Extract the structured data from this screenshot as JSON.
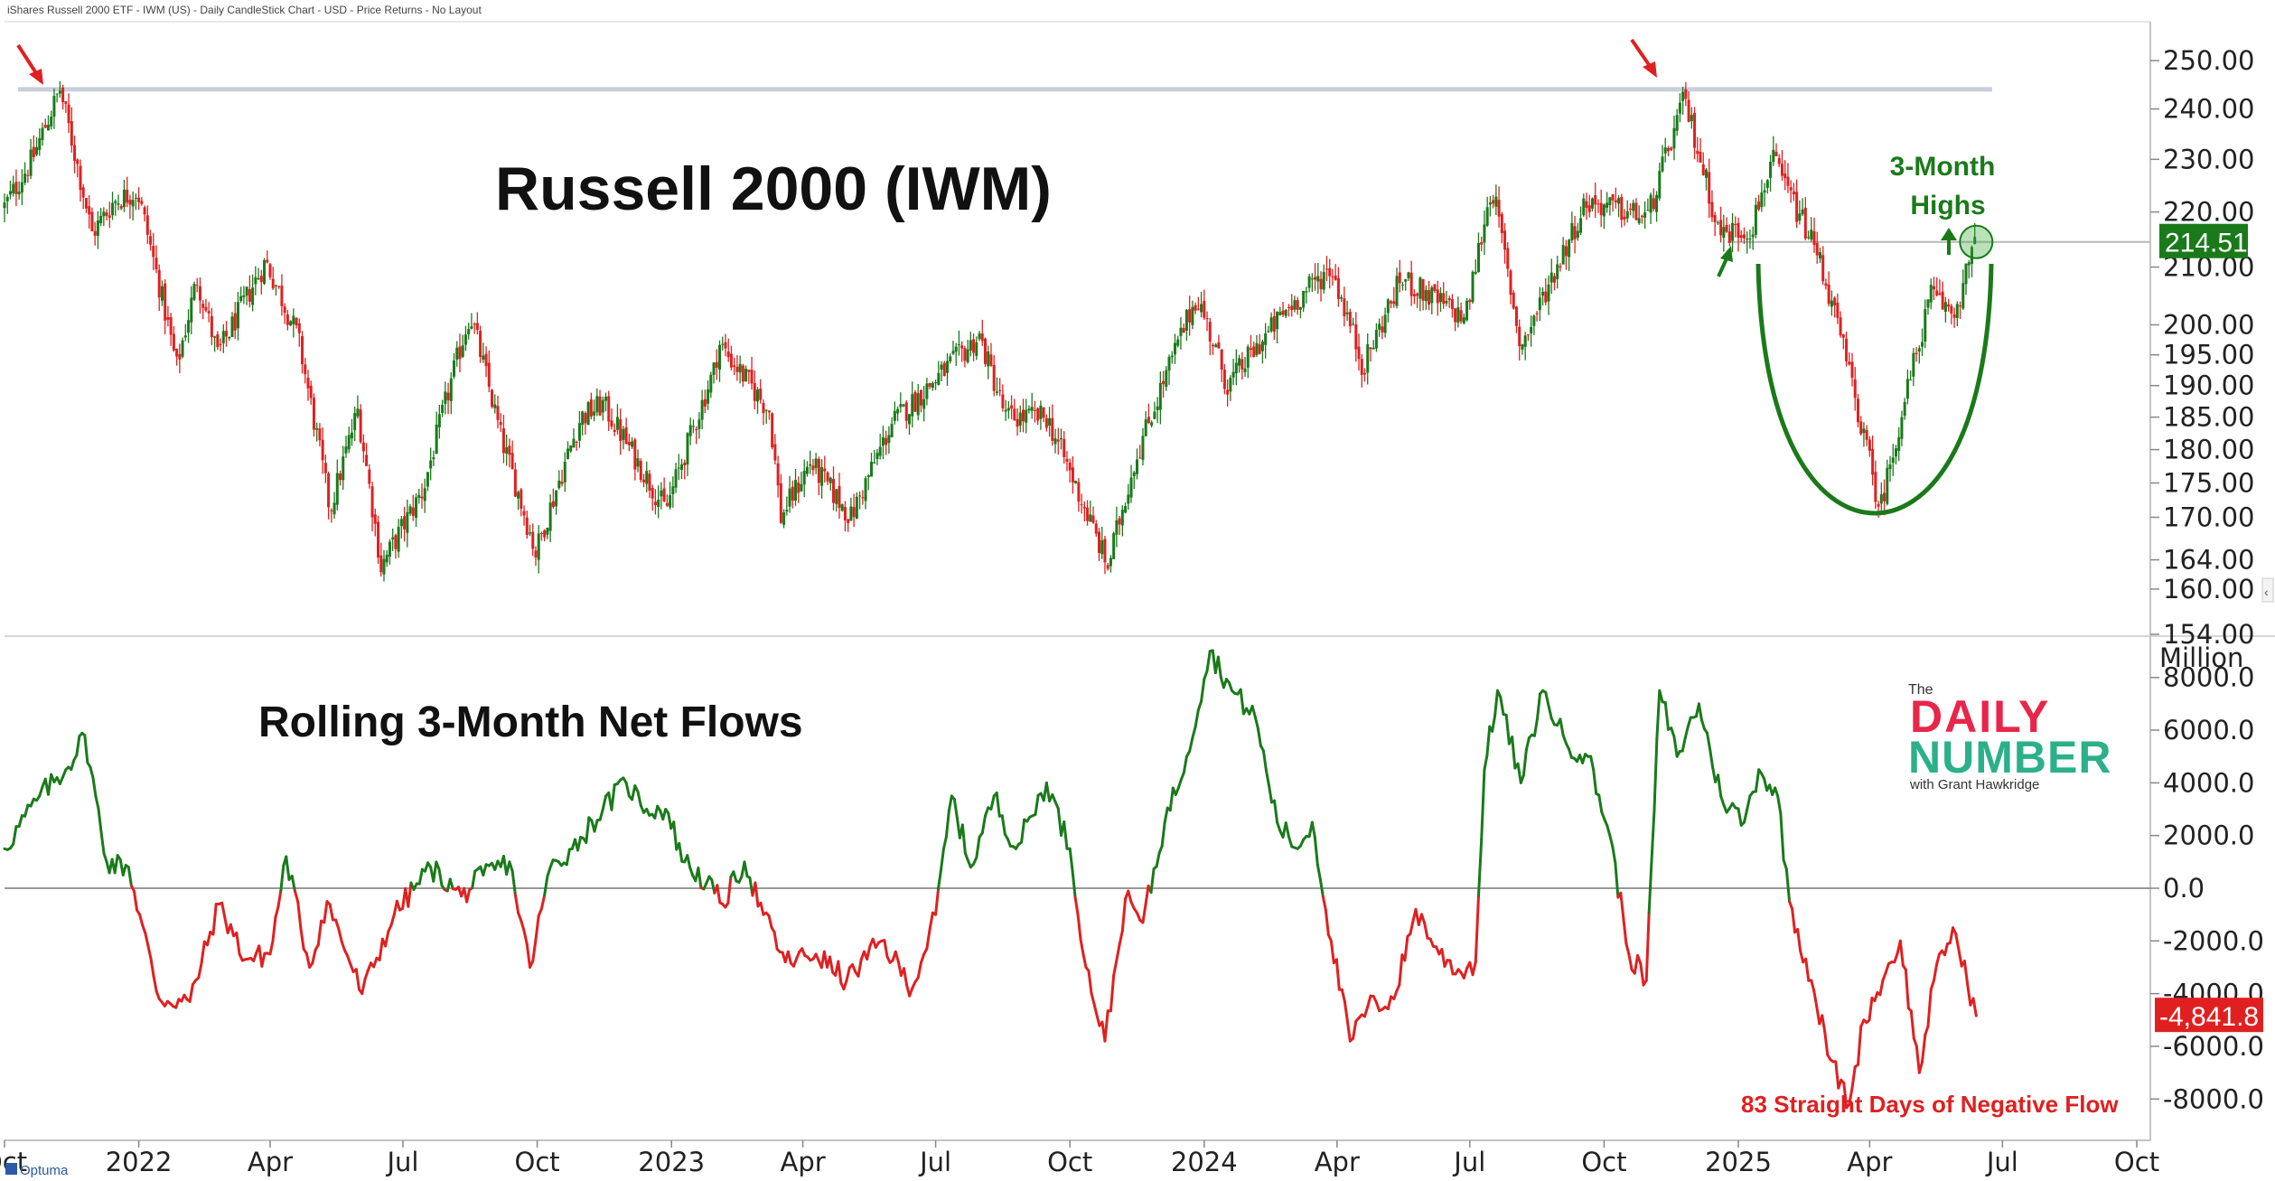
{
  "header": {
    "title": "iShares Russell 2000 ETF - IWM (US) - Daily CandleStick Chart - USD - Price Returns - No Layout"
  },
  "footer": {
    "brand": "Optuma"
  },
  "annotations": {
    "top_title": "Russell 2000 (IWM)",
    "bottom_title": "Rolling 3-Month Net Flows",
    "three_month_line1": "3-Month",
    "three_month_line2": "Highs",
    "negative_flow": "83 Straight Days of Negative Flow"
  },
  "logo": {
    "the": "The",
    "daily": "DAILY",
    "number": "NUMBER",
    "byline": "with Grant Hawkridge"
  },
  "colors": {
    "up": "#1a7a1a",
    "down": "#e02020",
    "annotation_green": "#1a7a1a",
    "annotation_red": "#e02020",
    "logo_red": "#e8254a",
    "logo_green": "#2bb08a"
  },
  "chart_data": [
    {
      "type": "candlestick",
      "title": "Russell 2000 (IWM)",
      "y_scale": "log",
      "ylim": [
        154,
        256
      ],
      "y_ticks": [
        "250.00",
        "240.00",
        "230.00",
        "220.00",
        "210.00",
        "200.00",
        "195.00",
        "190.00",
        "185.00",
        "180.00",
        "175.00",
        "170.00",
        "164.00",
        "160.00",
        "154.00"
      ],
      "last_value": "214.51",
      "resistance_level": 244,
      "three_month_high_level": 214.5,
      "x_ticks": [
        "Oct",
        "2022",
        "Apr",
        "Jul",
        "Oct",
        "2023",
        "Apr",
        "Jul",
        "Oct",
        "2024",
        "Apr",
        "Jul",
        "Oct",
        "2025",
        "Apr",
        "Jul",
        "Oct"
      ],
      "x_tick_dates": [
        "2021-10-01",
        "2022-01-01",
        "2022-04-01",
        "2022-07-01",
        "2022-10-01",
        "2023-01-01",
        "2023-04-01",
        "2023-07-01",
        "2023-10-01",
        "2024-01-01",
        "2024-04-01",
        "2024-07-01",
        "2024-10-01",
        "2025-01-01",
        "2025-04-01",
        "2025-07-01",
        "2025-10-01"
      ],
      "price_path": [
        [
          "2021-10-01",
          221
        ],
        [
          "2021-10-20",
          230
        ],
        [
          "2021-11-08",
          244
        ],
        [
          "2021-11-30",
          216
        ],
        [
          "2021-12-15",
          222
        ],
        [
          "2021-12-31",
          224
        ],
        [
          "2022-01-27",
          193
        ],
        [
          "2022-02-10",
          208
        ],
        [
          "2022-02-24",
          195
        ],
        [
          "2022-03-29",
          211
        ],
        [
          "2022-04-20",
          198
        ],
        [
          "2022-05-12",
          171
        ],
        [
          "2022-05-31",
          186
        ],
        [
          "2022-06-16",
          163
        ],
        [
          "2022-07-15",
          174
        ],
        [
          "2022-08-16",
          202
        ],
        [
          "2022-09-06",
          182
        ],
        [
          "2022-09-30",
          165
        ],
        [
          "2022-10-31",
          185
        ],
        [
          "2022-11-15",
          187
        ],
        [
          "2022-12-28",
          171
        ],
        [
          "2023-01-31",
          193
        ],
        [
          "2023-02-02",
          197
        ],
        [
          "2023-03-09",
          186
        ],
        [
          "2023-03-17",
          170
        ],
        [
          "2023-04-06",
          178
        ],
        [
          "2023-05-04",
          170
        ],
        [
          "2023-06-01",
          184
        ],
        [
          "2023-07-31",
          198
        ],
        [
          "2023-08-18",
          185
        ],
        [
          "2023-09-15",
          185
        ],
        [
          "2023-10-27",
          163
        ],
        [
          "2023-11-14",
          178
        ],
        [
          "2023-12-27",
          205
        ],
        [
          "2024-01-17",
          190
        ],
        [
          "2024-02-28",
          203
        ],
        [
          "2024-03-28",
          210
        ],
        [
          "2024-04-19",
          193
        ],
        [
          "2024-05-15",
          208
        ],
        [
          "2024-06-28",
          201
        ],
        [
          "2024-07-16",
          225
        ],
        [
          "2024-08-05",
          196
        ],
        [
          "2024-09-19",
          222
        ],
        [
          "2024-10-31",
          219
        ],
        [
          "2024-11-25",
          242
        ],
        [
          "2024-12-19",
          216
        ],
        [
          "2025-01-10",
          217
        ],
        [
          "2025-01-24",
          230
        ],
        [
          "2025-02-25",
          212
        ],
        [
          "2025-03-13",
          197
        ],
        [
          "2025-04-08",
          171
        ],
        [
          "2025-05-13",
          205
        ],
        [
          "2025-05-29",
          202
        ],
        [
          "2025-06-13",
          214.5
        ]
      ]
    },
    {
      "type": "line",
      "title": "Rolling 3-Month Net Flows",
      "ylabel": "Million",
      "ylim": [
        -9500,
        9500
      ],
      "y_ticks": [
        "8000.0",
        "6000.0",
        "4000.0",
        "2000.0",
        "0.0",
        "-2000.0",
        "-4000.0",
        "-6000.0",
        "-8000.0"
      ],
      "last_value": "-4,841.8",
      "positive_color": "#1a7a1a",
      "negative_color": "#e02020",
      "series": [
        {
          "points": [
            [
              "2021-10-01",
              1500
            ],
            [
              "2021-10-25",
              3500
            ],
            [
              "2021-11-12",
              4500
            ],
            [
              "2021-11-25",
              5800
            ],
            [
              "2021-12-10",
              1000
            ],
            [
              "2021-12-25",
              800
            ],
            [
              "2022-01-15",
              -4200
            ],
            [
              "2022-02-05",
              -4300
            ],
            [
              "2022-02-25",
              -600
            ],
            [
              "2022-03-15",
              -2700
            ],
            [
              "2022-04-01",
              -2500
            ],
            [
              "2022-04-12",
              1200
            ],
            [
              "2022-04-28",
              -3000
            ],
            [
              "2022-05-10",
              -500
            ],
            [
              "2022-06-03",
              -4000
            ],
            [
              "2022-06-25",
              -1000
            ],
            [
              "2022-07-20",
              800
            ],
            [
              "2022-08-10",
              -300
            ],
            [
              "2022-08-25",
              500
            ],
            [
              "2022-09-12",
              1000
            ],
            [
              "2022-09-26",
              -3000
            ],
            [
              "2022-10-10",
              800
            ],
            [
              "2022-10-25",
              1500
            ],
            [
              "2022-11-15",
              3000
            ],
            [
              "2022-12-01",
              4000
            ],
            [
              "2022-12-15",
              3000
            ],
            [
              "2022-12-28",
              3000
            ],
            [
              "2023-01-10",
              1000
            ],
            [
              "2023-01-25",
              200
            ],
            [
              "2023-02-05",
              -600
            ],
            [
              "2023-02-20",
              1000
            ],
            [
              "2023-03-05",
              -1000
            ],
            [
              "2023-03-20",
              -2800
            ],
            [
              "2023-04-10",
              -2500
            ],
            [
              "2023-05-01",
              -3500
            ],
            [
              "2023-05-25",
              -2000
            ],
            [
              "2023-06-15",
              -3800
            ],
            [
              "2023-07-01",
              -1000
            ],
            [
              "2023-07-12",
              3500
            ],
            [
              "2023-07-25",
              800
            ],
            [
              "2023-08-10",
              3500
            ],
            [
              "2023-08-25",
              1500
            ],
            [
              "2023-09-15",
              4000
            ],
            [
              "2023-10-01",
              1500
            ],
            [
              "2023-10-12",
              -3000
            ],
            [
              "2023-10-25",
              -5800
            ],
            [
              "2023-11-08",
              -400
            ],
            [
              "2023-11-20",
              -1300
            ],
            [
              "2023-12-05",
              2500
            ],
            [
              "2023-12-20",
              5000
            ],
            [
              "2024-01-05",
              9000
            ],
            [
              "2024-01-20",
              7500
            ],
            [
              "2024-02-05",
              6500
            ],
            [
              "2024-02-20",
              2500
            ],
            [
              "2024-03-05",
              1500
            ],
            [
              "2024-03-15",
              2500
            ],
            [
              "2024-03-28",
              -2000
            ],
            [
              "2024-04-10",
              -5800
            ],
            [
              "2024-04-22",
              -4500
            ],
            [
              "2024-05-10",
              -4200
            ],
            [
              "2024-05-25",
              -800
            ],
            [
              "2024-06-10",
              -2500
            ],
            [
              "2024-06-25",
              -3200
            ],
            [
              "2024-07-05",
              -2800
            ],
            [
              "2024-07-11",
              4500
            ],
            [
              "2024-07-20",
              7500
            ],
            [
              "2024-08-05",
              4000
            ],
            [
              "2024-08-20",
              7500
            ],
            [
              "2024-09-05",
              5500
            ],
            [
              "2024-09-20",
              5000
            ],
            [
              "2024-10-05",
              2000
            ],
            [
              "2024-10-18",
              -2500
            ],
            [
              "2024-10-30",
              -3500
            ],
            [
              "2024-11-08",
              7500
            ],
            [
              "2024-11-20",
              5000
            ],
            [
              "2024-12-05",
              7000
            ],
            [
              "2024-12-20",
              3500
            ],
            [
              "2025-01-05",
              2500
            ],
            [
              "2025-01-15",
              4500
            ],
            [
              "2025-01-28",
              3500
            ],
            [
              "2025-02-05",
              -500
            ],
            [
              "2025-02-20",
              -3500
            ],
            [
              "2025-03-05",
              -6500
            ],
            [
              "2025-03-18",
              -8200
            ],
            [
              "2025-03-28",
              -5000
            ],
            [
              "2025-04-10",
              -3500
            ],
            [
              "2025-04-22",
              -2000
            ],
            [
              "2025-05-05",
              -7000
            ],
            [
              "2025-05-15",
              -3500
            ],
            [
              "2025-05-28",
              -1500
            ],
            [
              "2025-06-13",
              -4841.8
            ]
          ]
        }
      ]
    }
  ]
}
